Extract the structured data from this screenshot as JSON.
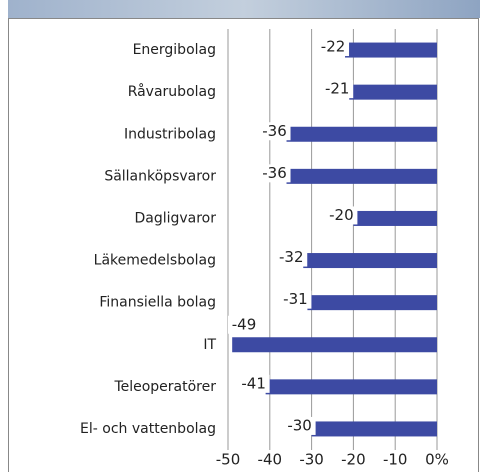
{
  "chart_data": {
    "type": "bar",
    "orientation": "horizontal",
    "categories": [
      "Energibolag",
      "Råvarubolag",
      "Industribolag",
      "Sällanköpsvaror",
      "Dagligvaror",
      "Läkemedelsbolag",
      "Finansiella bolag",
      "IT",
      "Teleoperatörer",
      "El- och vattenbolag"
    ],
    "values": [
      -22,
      -21,
      -36,
      -36,
      -20,
      -32,
      -31,
      -49,
      -41,
      -30
    ],
    "color": "#3d4aa3",
    "xlim": [
      -50,
      0
    ],
    "xticks": [
      -50,
      -40,
      -30,
      -20,
      -10,
      {
        "value": 0,
        "label": "0%"
      }
    ],
    "grid": true
  }
}
